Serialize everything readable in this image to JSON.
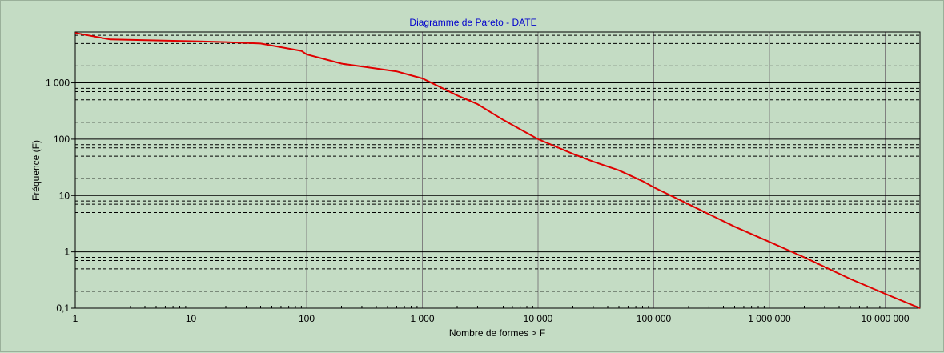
{
  "chart_data": {
    "type": "line",
    "title": "Diagramme de Pareto - DATE",
    "xlabel": "Nombre de formes > F",
    "ylabel": "Fréquence (F)",
    "x_scale": "log",
    "y_scale": "log",
    "xlim": [
      1,
      20000000
    ],
    "ylim": [
      0.1,
      8000
    ],
    "x_ticks": [
      {
        "value": 1,
        "label": "1"
      },
      {
        "value": 10,
        "label": "10"
      },
      {
        "value": 100,
        "label": "100"
      },
      {
        "value": 1000,
        "label": "1 000"
      },
      {
        "value": 10000,
        "label": "10 000"
      },
      {
        "value": 100000,
        "label": "100 000"
      },
      {
        "value": 1000000,
        "label": "1 000 000"
      },
      {
        "value": 10000000,
        "label": "10 000 000"
      }
    ],
    "y_ticks": [
      {
        "value": 0.1,
        "label": "0,1"
      },
      {
        "value": 1,
        "label": "1"
      },
      {
        "value": 10,
        "label": "10"
      },
      {
        "value": 100,
        "label": "100"
      },
      {
        "value": 1000,
        "label": "1 000"
      }
    ],
    "y_minor_dashed": [
      2,
      5,
      7,
      8
    ],
    "grid": true,
    "series": [
      {
        "color": "#e00000",
        "x": [
          1,
          2,
          10,
          20,
          40,
          60,
          90,
          100,
          200,
          600,
          1000,
          2000,
          3000,
          5000,
          10000,
          20000,
          30000,
          50000,
          80000,
          100000,
          200000,
          500000,
          1000000,
          2000000,
          5000000,
          10000000,
          20000000
        ],
        "y": [
          7700,
          5900,
          5500,
          5300,
          5000,
          4300,
          3700,
          3200,
          2200,
          1600,
          1200,
          600,
          420,
          220,
          100,
          55,
          40,
          28,
          18,
          14,
          7,
          2.8,
          1.5,
          0.8,
          0.33,
          0.18,
          0.1
        ]
      }
    ]
  }
}
